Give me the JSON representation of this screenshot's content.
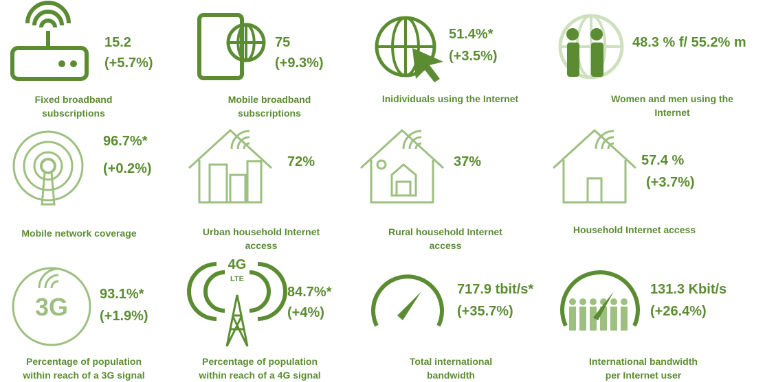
{
  "tiles": [
    {
      "value": "15.2",
      "change": "(+5.7%)",
      "label": [
        "Fixed broadband",
        "subscriptions"
      ]
    },
    {
      "value": "75",
      "change": "(+9.3%)",
      "label": [
        "Mobile broadband",
        "subscriptions"
      ]
    },
    {
      "value": "51.4%*",
      "change": "(+3.5%)",
      "label": [
        "Inidividuals using the Internet"
      ]
    },
    {
      "value": "48.3 % f/ 55.2% m",
      "label": [
        "Women and men using the",
        "Internet"
      ]
    },
    {
      "value": "96.7%*",
      "change": "(+0.2%)",
      "label": [
        "Mobile network coverage"
      ]
    },
    {
      "value": "72%",
      "label": [
        "Urban household Internet",
        "access"
      ]
    },
    {
      "value": "37%",
      "label": [
        "Rural household Internet",
        "access"
      ]
    },
    {
      "value": "57.4 %",
      "change": "(+3.7%)",
      "label": [
        "Household Internet access"
      ]
    },
    {
      "value": "93.1%*",
      "change": "(+1.9%)",
      "label": [
        "Percentage of population",
        "within reach of a 3G signal"
      ],
      "icon_text": [
        "3G"
      ]
    },
    {
      "value": "84.7%*",
      "change": "(+4%)",
      "label": [
        "Percentage of population",
        "within reach of a 4G signal"
      ],
      "icon_text": [
        "4G",
        "LTE"
      ]
    },
    {
      "value": "717.9 tbit/s*",
      "change": "(+35.7%)",
      "label": [
        "Total international",
        "bandwidth"
      ]
    },
    {
      "value": "131.3 Kbit/s",
      "change": "(+26.4%)",
      "label": [
        "International bandwidth",
        "per Internet user"
      ]
    }
  ]
}
